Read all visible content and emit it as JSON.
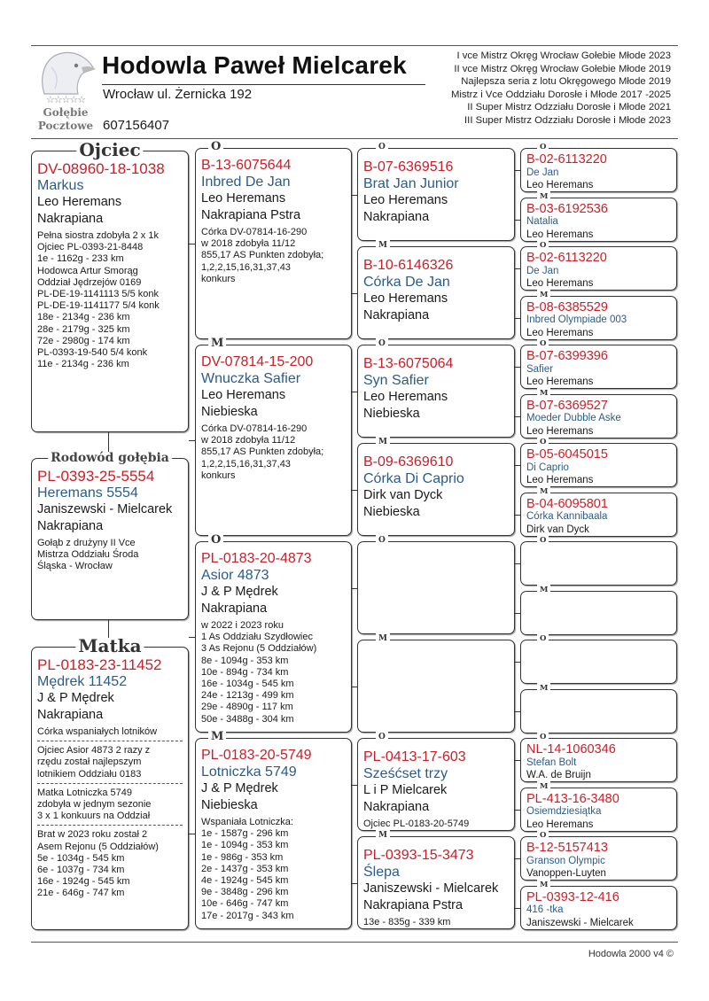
{
  "header": {
    "title": "Hodowla Paweł Mielcarek",
    "address": "Wrocław ul. Żernicka 192",
    "phone": "607156407",
    "logo": {
      "stars": "☆☆☆☆☆",
      "line1": "Gołębie",
      "line2": "Pocztowe"
    },
    "achievements": [
      "I vce Mistrz Okręg Wrocław Gołebie Młode 2023",
      "II vce Mistrz Okręg Wrocław Gołebie Młode 2019",
      "Najlepsza seria z lotu Okręgowego Młode 2019",
      "Mistrz i Vce Oddziału Dorosłe i Młode  2017 -2025",
      "II Super Mistrz Odzziału Dorosłe i Młode 2021",
      "III Super Mistrz Odzziału Dorosłe i Młode 2023"
    ]
  },
  "colors": {
    "ring": "#c8202a",
    "name": "#2b5b8c"
  },
  "gen1": [
    {
      "label": "Ojciec",
      "ring": "DV-08960-18-1038",
      "name": "Markus",
      "breeder": "Leo Heremans",
      "color": "Nakrapiana",
      "notes": [
        [
          "Pełna siostra zdobyła 2 x 1k",
          "Ojciec  PL-0393-21-8448",
          "1e - 1162g - 233 km",
          "Hodowca Artur Smorąg",
          "Oddział Jędrzejów 0169",
          "PL-DE-19-1141113 5/5 konk",
          "PL-DE-19-1141177 5/4 konk",
          "18e - 2134g - 236 km",
          "28e - 2179g - 325 km",
          "72e - 2980g - 174 km",
          "PL-0393-19-540 5/4 konk",
          "11e - 2134g - 236 km"
        ]
      ]
    },
    {
      "label": "Rodowód gołębia",
      "ring": "PL-0393-25-5554",
      "name": "Heremans 5554",
      "breeder": "Janiszewski - Mielcarek",
      "color": "Nakrapiana",
      "notes": [
        [
          "Gołąb z drużyny II Vce",
          "Mistrza Oddziału Środa",
          "Śląska - Wrocław"
        ]
      ]
    },
    {
      "label": "Matka",
      "ring": "PL-0183-23-11452",
      "name": "Mędrek 11452",
      "breeder": "J & P Mędrek",
      "color": "Nakrapiana",
      "notes": [
        [
          "Córka wspaniałych lotników"
        ],
        [
          "Ojciec Asior 4873 2 razy z",
          "rzędu został najlepszym",
          "lotnikiem Oddziału 0183"
        ],
        [
          "Matka Lotniczka 5749",
          "zdobyła w jednym sezonie",
          "3 x 1 konkuurs na Oddział"
        ],
        [
          "Brat w 2023 roku został 2",
          "Asem Rejonu (5 Oddziałów)",
          "5e - 1034g - 545 km",
          "6e - 1037g - 734 km",
          "16e - 1924g - 545 km",
          "21e -   646g - 747 km"
        ]
      ]
    }
  ],
  "gen2": [
    {
      "label": "O",
      "ring": "B-13-6075644",
      "name": "Inbred De Jan",
      "breeder": "Leo Heremans",
      "color": "Nakrapiana Pstra",
      "notes": [
        [
          "Córka DV-07814-16-290",
          "w 2018 zdobyła 11/12",
          "855,17 AS Punkten zdobyła;",
          "1,2,2,15,16,31,37,43",
          "konkurs"
        ]
      ]
    },
    {
      "label": "M",
      "ring": "DV-07814-15-200",
      "name": "Wnuczka Safier",
      "breeder": "Leo Heremans",
      "color": "Niebieska",
      "notes": [
        [
          "Córka DV-07814-16-290",
          "w 2018 zdobyła 11/12",
          "855,17 AS Punkten zdobyła;",
          "1,2,2,15,16,31,37,43",
          "konkurs"
        ]
      ]
    },
    {
      "label": "O",
      "ring": "PL-0183-20-4873",
      "name": "Asior 4873",
      "breeder": "J & P Mędrek",
      "color": "Nakrapiana",
      "notes": [
        [
          "w 2022  i 2023 roku",
          "1 As Oddziału Szydłowiec",
          "3 As Rejonu (5 Oddziałów)",
          "8e - 1094g - 353 km",
          "10e - 894g - 734 km",
          "16e - 1034g - 545 km",
          "24e - 1213g - 499 km",
          "29e - 4890g - 117 km",
          "50e - 3488g - 304 km"
        ]
      ]
    },
    {
      "label": "M",
      "ring": "PL-0183-20-5749",
      "name": "Lotniczka 5749",
      "breeder": "J & P Mędrek",
      "color": "Niebieska",
      "notes": [
        [
          "Wspaniała Lotniczka:",
          "1e - 1587g - 296 km",
          "1e - 1094g - 353 km",
          "1e -   986g - 353 km",
          "2e - 1437g - 353 km",
          "4e - 1924g - 545 km",
          "9e - 3848g - 296 km",
          "10e - 646g - 747 km",
          "17e - 2017g - 343 km"
        ]
      ]
    }
  ],
  "gen3": [
    {
      "label": "O",
      "ring": "B-07-6369516",
      "name": "Brat Jan Junior",
      "breeder": "Leo Heremans",
      "color": "Nakrapiana"
    },
    {
      "label": "M",
      "ring": "B-10-6146326",
      "name": "Córka De Jan",
      "breeder": "Leo Heremans",
      "color": "Nakrapiana"
    },
    {
      "label": "O",
      "ring": "B-13-6075064",
      "name": "Syn Safier",
      "breeder": "Leo Heremans",
      "color": "Niebieska"
    },
    {
      "label": "M",
      "ring": "B-09-6369610",
      "name": "Córka Di Caprio",
      "breeder": "Dirk van Dyck",
      "color": "Niebieska"
    },
    {
      "label": "O"
    },
    {
      "label": "M"
    },
    {
      "label": "O",
      "ring": "PL-0413-17-603",
      "name": "Sześćset trzy",
      "breeder": "L i P Mielcarek",
      "color": "Nakrapiana",
      "notes": [
        [
          "Ojciec PL-0183-20-5749"
        ]
      ]
    },
    {
      "label": "M",
      "ring": "PL-0393-15-3473",
      "name": "Ślepa",
      "breeder": "Janiszewski - Mielcarek",
      "color": "Nakrapiana Pstra",
      "notes": [
        [
          "13e - 835g - 339 km"
        ]
      ]
    }
  ],
  "gen4": [
    {
      "label": "O",
      "ring": "B-02-6113220",
      "name": "De Jan",
      "breeder": "Leo Heremans"
    },
    {
      "label": "M",
      "ring": "B-03-6192536",
      "name": "Natalia",
      "breeder": "Leo Heremans"
    },
    {
      "label": "O",
      "ring": "B-02-6113220",
      "name": "De Jan",
      "breeder": "Leo Heremans"
    },
    {
      "label": "M",
      "ring": "B-08-6385529",
      "name": "Inbred Olympiade 003",
      "breeder": "Leo Heremans"
    },
    {
      "label": "O",
      "ring": "B-07-6399396",
      "name": "Safier",
      "breeder": "Leo Heremans"
    },
    {
      "label": "M",
      "ring": "B-07-6369527",
      "name": "Moeder Dubble Aske",
      "breeder": "Leo Heremans"
    },
    {
      "label": "O",
      "ring": "B-05-6045015",
      "name": "Di Caprio",
      "breeder": "Leo Heremans"
    },
    {
      "label": "M",
      "ring": "B-04-6095801",
      "name": "Córka Kannibaala",
      "breeder": "Dirk van Dyck"
    },
    {
      "label": "O"
    },
    {
      "label": "M"
    },
    {
      "label": "O"
    },
    {
      "label": "M"
    },
    {
      "label": "O",
      "ring": "NL-14-1060346",
      "name": "Stefan Bolt",
      "breeder": "W.A. de Bruijn"
    },
    {
      "label": "M",
      "ring": "PL-413-16-3480",
      "name": "Osiemdziesiątka",
      "breeder": "Leo Heremans"
    },
    {
      "label": "O",
      "ring": "B-12-5157413",
      "name": "Granson Olympic",
      "breeder": "Vanoppen-Luyten"
    },
    {
      "label": "M",
      "ring": "PL-0393-12-416",
      "name": "416 -tka",
      "breeder": "Janiszewski - Mielcarek"
    }
  ],
  "footer": "Hodowla 2000 v4 ©"
}
